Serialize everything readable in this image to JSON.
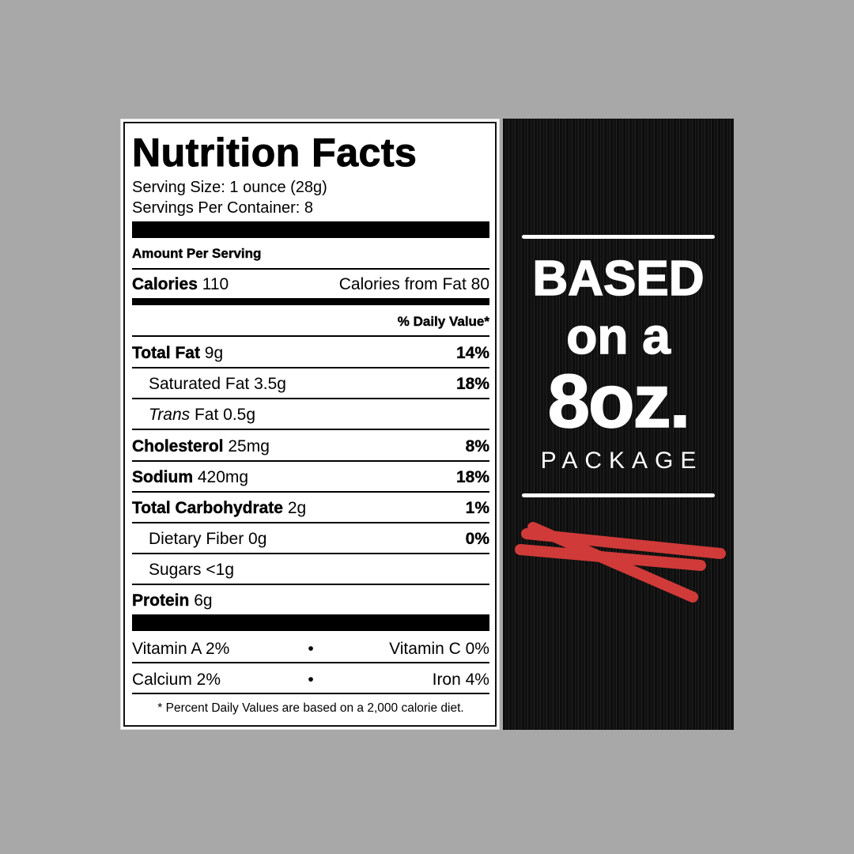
{
  "nutrition": {
    "title": "Nutrition Facts",
    "serving_size": "Serving Size: 1 ounce (28g)",
    "servings_per_container": "Servings Per Container: 8",
    "amount_per_serving": "Amount Per Serving",
    "calories_label": "Calories",
    "calories_value": "110",
    "calories_from_fat": "Calories from Fat 80",
    "daily_value_header": "% Daily Value*",
    "rows": [
      {
        "label": "Total Fat",
        "amount": "9g",
        "dv": "14%",
        "bold": true
      },
      {
        "label": "Saturated Fat",
        "amount": "3.5g",
        "dv": "18%",
        "bold": false
      },
      {
        "label": "Trans",
        "label_rest": "Fat",
        "amount": "0.5g",
        "dv": "",
        "bold": false
      },
      {
        "label": "Cholesterol",
        "amount": "25mg",
        "dv": "8%",
        "bold": true
      },
      {
        "label": "Sodium",
        "amount": "420mg",
        "dv": "18%",
        "bold": true
      },
      {
        "label": "Total Carbohydrate",
        "amount": "2g",
        "dv": "1%",
        "bold": true
      },
      {
        "label": "Dietary Fiber",
        "amount": "0g",
        "dv": "0%",
        "bold": false
      },
      {
        "label": "Sugars",
        "amount": "<1g",
        "dv": "",
        "bold": false
      },
      {
        "label": "Protein",
        "amount": "6g",
        "dv": "",
        "bold": true
      }
    ],
    "vitamins": [
      {
        "left": "Vitamin A 2%",
        "right": "Vitamin C 0%"
      },
      {
        "left": "Calcium 2%",
        "right": "Iron 4%"
      }
    ],
    "bullet": "•",
    "footnote": "* Percent Daily Values are based on a 2,000 calorie diet."
  },
  "panel": {
    "line1": "BASED",
    "line2": "on a",
    "line3": "8oz.",
    "line4": "PACKAGE",
    "image": "meat-sticks",
    "stick_color": "#d03a38"
  }
}
